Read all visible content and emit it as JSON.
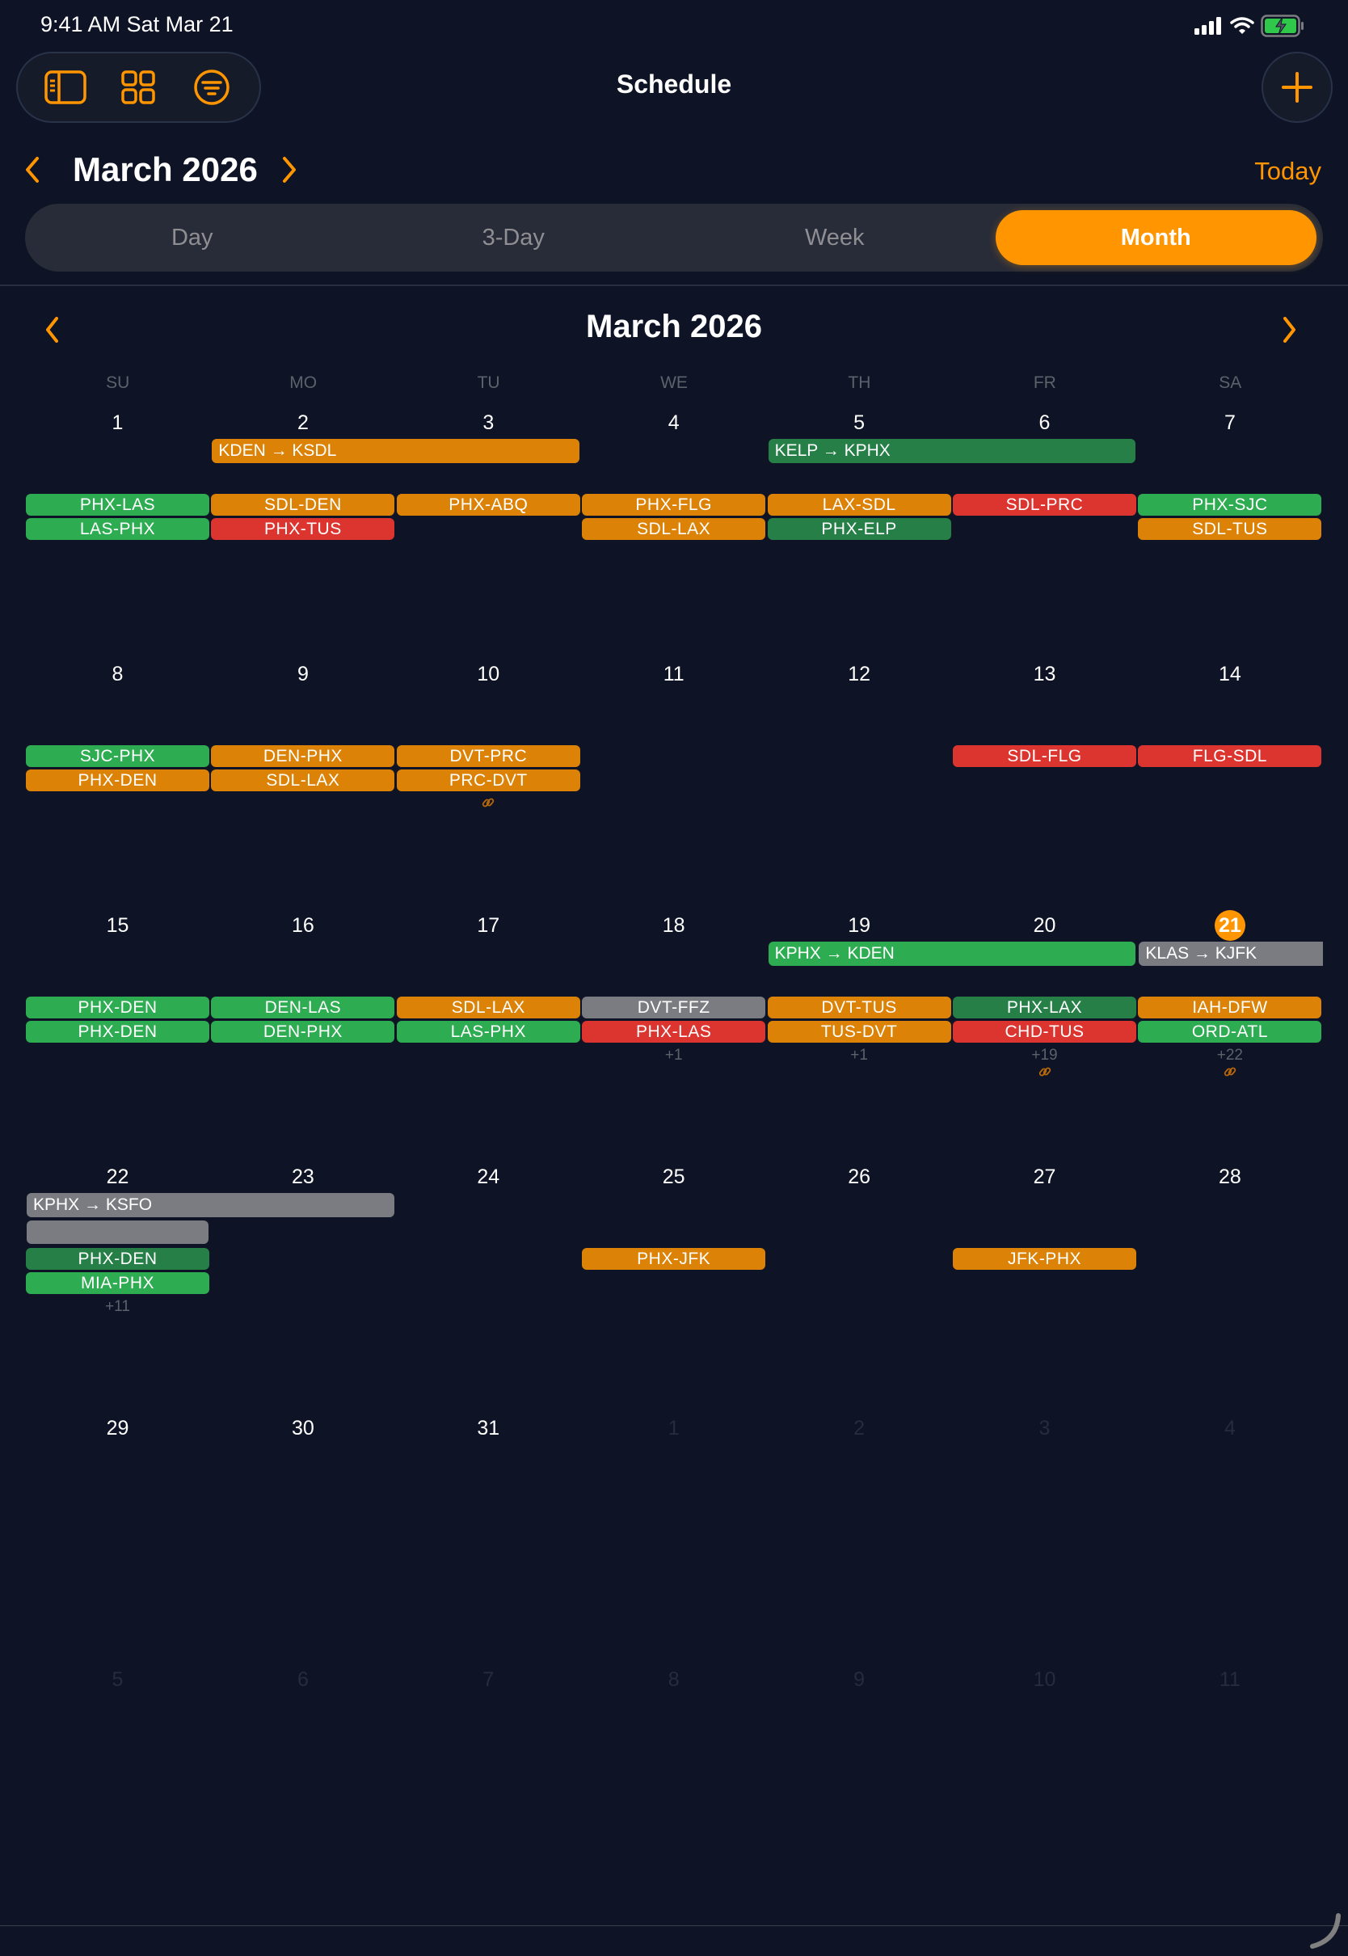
{
  "status_bar": {
    "time": "9:41 AM   Sat Mar 21"
  },
  "toolbar": {
    "icons": [
      "sidebar-icon",
      "grid-icon",
      "filter-icon"
    ],
    "title": "Schedule",
    "add_icon": "plus-icon"
  },
  "month_nav": {
    "label": "March 2026",
    "today_label": "Today"
  },
  "view_modes": [
    {
      "label": "Day",
      "active": false
    },
    {
      "label": "3-Day",
      "active": false
    },
    {
      "label": "Week",
      "active": false
    },
    {
      "label": "Month",
      "active": true
    }
  ],
  "calendar": {
    "title": "March 2026",
    "weekdays": [
      "SU",
      "MO",
      "TU",
      "WE",
      "TH",
      "FR",
      "SA"
    ],
    "today": 21,
    "colors": {
      "orange": "#db8207",
      "red": "#dc3530",
      "green": "#2eac52",
      "dkgreen": "#257f47",
      "gray": "#7b7c81",
      "accent": "#ff9500"
    },
    "weeks": [
      {
        "days": [
          "1",
          "2",
          "3",
          "4",
          "5",
          "6",
          "7"
        ],
        "spans": [
          {
            "label": "KDEN → KSDL",
            "start": 1,
            "end": 2,
            "color": "orange"
          },
          {
            "label": "KELP → KPHX",
            "start": 4,
            "end": 5,
            "color": "dkgreen"
          }
        ],
        "chips": [
          [
            {
              "label": "PHX-LAS",
              "color": "green"
            },
            {
              "label": "LAS-PHX",
              "color": "green"
            }
          ],
          [
            {
              "label": "SDL-DEN",
              "color": "orange"
            },
            {
              "label": "PHX-TUS",
              "color": "red"
            }
          ],
          [
            {
              "label": "PHX-ABQ",
              "color": "orange"
            }
          ],
          [
            {
              "label": "PHX-FLG",
              "color": "orange"
            },
            {
              "label": "SDL-LAX",
              "color": "orange"
            }
          ],
          [
            {
              "label": "LAX-SDL",
              "color": "orange"
            },
            {
              "label": "PHX-ELP",
              "color": "dkgreen"
            }
          ],
          [
            {
              "label": "SDL-PRC",
              "color": "red"
            }
          ],
          [
            {
              "label": "PHX-SJC",
              "color": "green"
            },
            {
              "label": "SDL-TUS",
              "color": "orange"
            }
          ]
        ],
        "more": [
          "",
          "",
          "",
          "",
          "",
          "",
          ""
        ],
        "links": [
          false,
          false,
          false,
          false,
          false,
          false,
          false
        ]
      },
      {
        "days": [
          "8",
          "9",
          "10",
          "11",
          "12",
          "13",
          "14"
        ],
        "spans": [],
        "chips": [
          [
            {
              "label": "SJC-PHX",
              "color": "green"
            },
            {
              "label": "PHX-DEN",
              "color": "orange"
            }
          ],
          [
            {
              "label": "DEN-PHX",
              "color": "orange"
            },
            {
              "label": "SDL-LAX",
              "color": "orange"
            }
          ],
          [
            {
              "label": "DVT-PRC",
              "color": "orange"
            },
            {
              "label": "PRC-DVT",
              "color": "orange"
            }
          ],
          [],
          [],
          [
            {
              "label": "SDL-FLG",
              "color": "red"
            }
          ],
          [
            {
              "label": "FLG-SDL",
              "color": "red"
            }
          ]
        ],
        "more": [
          "",
          "",
          "",
          "",
          "",
          "",
          ""
        ],
        "links": [
          false,
          false,
          true,
          false,
          false,
          false,
          false
        ]
      },
      {
        "days": [
          "15",
          "16",
          "17",
          "18",
          "19",
          "20",
          "21"
        ],
        "spans": [
          {
            "label": "KPHX → KDEN",
            "start": 4,
            "end": 5,
            "color": "green"
          },
          {
            "label": "KLAS → KJFK",
            "start": 6,
            "end": 6,
            "color": "gray",
            "continues": true
          }
        ],
        "chips": [
          [
            {
              "label": "PHX-DEN",
              "color": "green"
            },
            {
              "label": "PHX-DEN",
              "color": "green"
            }
          ],
          [
            {
              "label": "DEN-LAS",
              "color": "green"
            },
            {
              "label": "DEN-PHX",
              "color": "green"
            }
          ],
          [
            {
              "label": "SDL-LAX",
              "color": "orange"
            },
            {
              "label": "LAS-PHX",
              "color": "green"
            }
          ],
          [
            {
              "label": "DVT-FFZ",
              "color": "gray"
            },
            {
              "label": "PHX-LAS",
              "color": "red"
            }
          ],
          [
            {
              "label": "DVT-TUS",
              "color": "orange"
            },
            {
              "label": "TUS-DVT",
              "color": "orange"
            }
          ],
          [
            {
              "label": "PHX-LAX",
              "color": "dkgreen"
            },
            {
              "label": "CHD-TUS",
              "color": "red"
            }
          ],
          [
            {
              "label": "IAH-DFW",
              "color": "orange"
            },
            {
              "label": "ORD-ATL",
              "color": "green"
            }
          ]
        ],
        "more": [
          "",
          "",
          "",
          "+1",
          "+1",
          "+19",
          "+22"
        ],
        "links": [
          false,
          false,
          false,
          false,
          false,
          true,
          true
        ]
      },
      {
        "days": [
          "22",
          "23",
          "24",
          "25",
          "26",
          "27",
          "28"
        ],
        "spans": [
          {
            "label": "KPHX → KSFO",
            "start": 0,
            "end": 1,
            "color": "gray",
            "continued": true
          },
          {
            "label": "",
            "start": 0,
            "end": 0,
            "color": "gray",
            "row": 1,
            "continued": true
          }
        ],
        "chips": [
          [
            {
              "label": "PHX-DEN",
              "color": "dkgreen"
            },
            {
              "label": "MIA-PHX",
              "color": "green"
            }
          ],
          [],
          [],
          [
            {
              "label": "PHX-JFK",
              "color": "orange"
            }
          ],
          [],
          [
            {
              "label": "JFK-PHX",
              "color": "orange"
            }
          ],
          []
        ],
        "more": [
          "+11",
          "",
          "",
          "",
          "",
          "",
          ""
        ],
        "links": [
          false,
          false,
          false,
          false,
          false,
          false,
          false
        ]
      },
      {
        "days": [
          "29",
          "30",
          "31",
          "1",
          "2",
          "3",
          "4"
        ],
        "other_month_from": 3,
        "spans": [],
        "chips": [
          [],
          [],
          [],
          [],
          [],
          [],
          []
        ],
        "more": [
          "",
          "",
          "",
          "",
          "",
          "",
          ""
        ],
        "links": [
          false,
          false,
          false,
          false,
          false,
          false,
          false
        ]
      },
      {
        "days": [
          "5",
          "6",
          "7",
          "8",
          "9",
          "10",
          "11"
        ],
        "other_month_from": 0,
        "spans": [],
        "chips": [
          [],
          [],
          [],
          [],
          [],
          [],
          []
        ],
        "more": [
          "",
          "",
          "",
          "",
          "",
          "",
          ""
        ],
        "links": [
          false,
          false,
          false,
          false,
          false,
          false,
          false
        ]
      }
    ]
  }
}
